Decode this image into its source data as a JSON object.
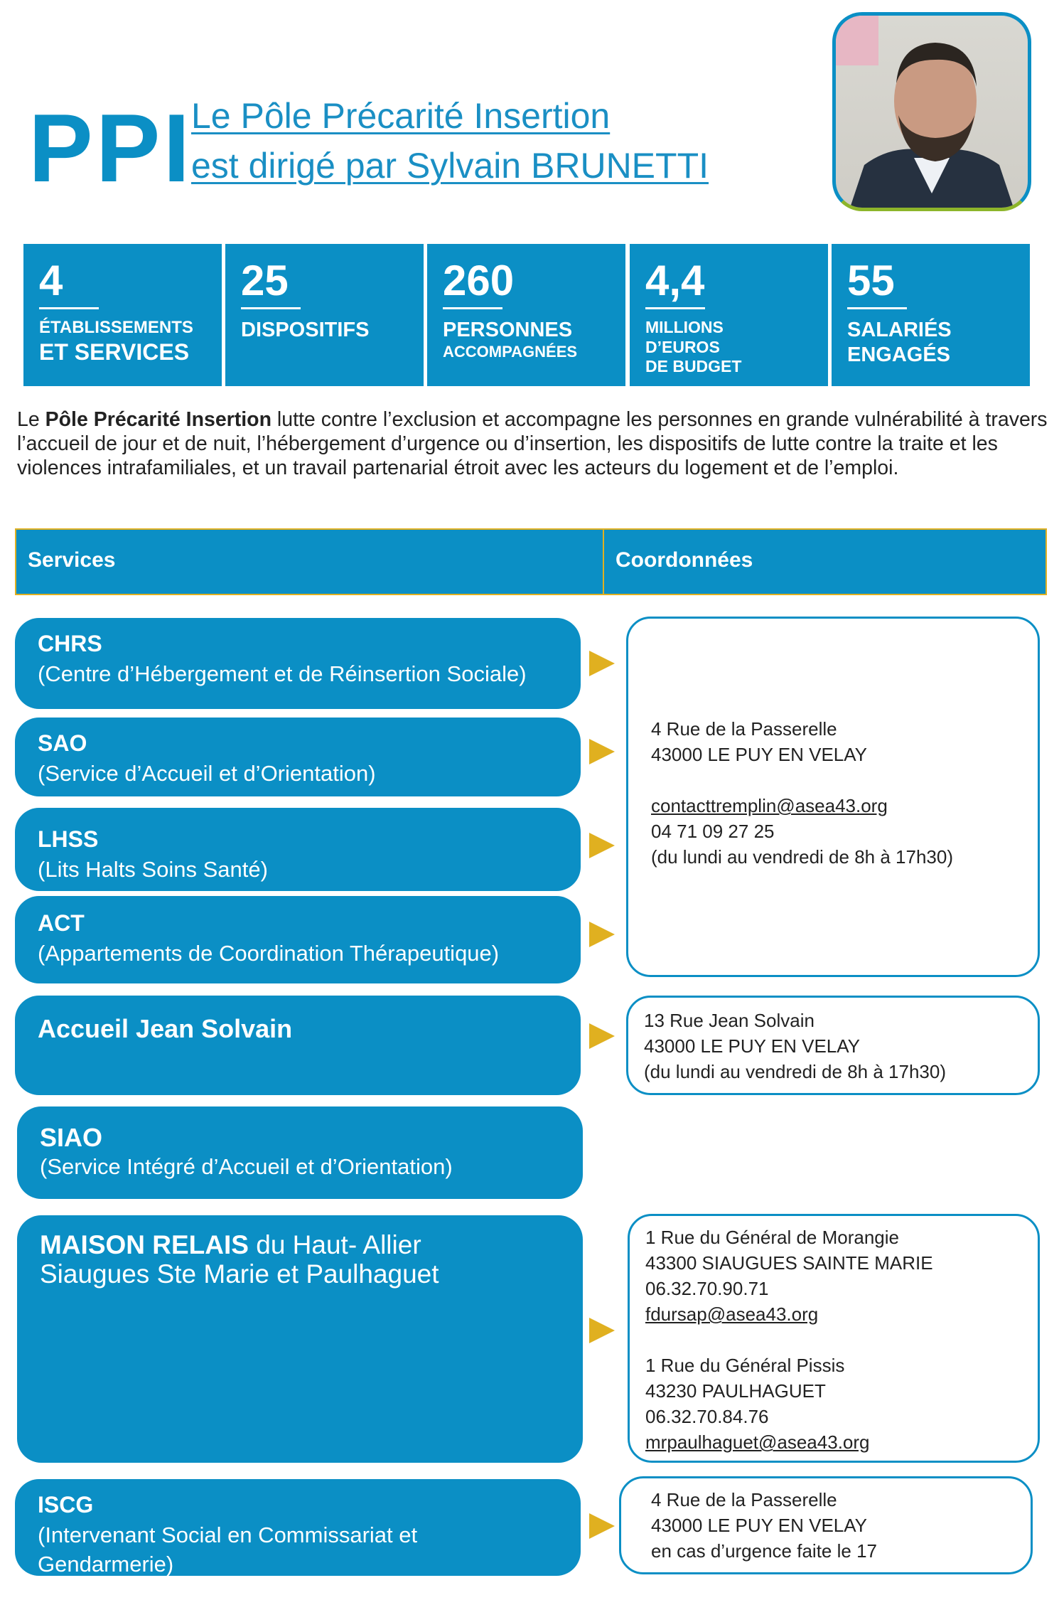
{
  "header": {
    "acronym": "PPI",
    "title_line1": "Le Pôle Précarité Insertion",
    "title_line2": "est dirigé par Sylvain BRUNETTI",
    "photo_alt": "Sylvain BRUNETTI"
  },
  "stats": [
    {
      "number": "4",
      "label1": "ÉTABLISSEMENTS",
      "label2": "ET SERVICES"
    },
    {
      "number": "25",
      "label1": "DISPOSITIFS",
      "label2": ""
    },
    {
      "number": "260",
      "label1": "PERSONNES",
      "label2": "ACCOMPAGNÉES"
    },
    {
      "number": "4,4",
      "label1": "MILLIONS",
      "label2": "D’EUROS",
      "label3": "DE BUDGET"
    },
    {
      "number": "55",
      "label1": "SALARIÉS",
      "label2": "ENGAGÉS"
    }
  ],
  "intro": {
    "prefix": "Le ",
    "bold": "Pôle Précarité Insertion",
    "text": " lutte contre l’exclusion et accompagne les personnes en grande vulnérabilité à travers l’accueil de jour et de nuit, l’hébergement d’urgence ou d’insertion, les dispositifs de lutte contre la traite et les violences intrafamiliales, et un travail partenarial étroit avec les acteurs du logement et de l’emploi."
  },
  "table": {
    "col1": "Services",
    "col2": "Coordonnées"
  },
  "services": [
    {
      "title": "CHRS",
      "subtitle": "(Centre d’Hébergement et de Réinsertion Sociale)"
    },
    {
      "title": "SAO",
      "subtitle": "(Service d’Accueil et d’Orientation)"
    },
    {
      "title": "LHSS",
      "subtitle": "(Lits Halts Soins Santé)"
    },
    {
      "title": "ACT",
      "subtitle": "(Appartements de Coordination Thérapeutique)"
    },
    {
      "title": "Accueil Jean Solvain",
      "subtitle": ""
    },
    {
      "title": "SIAO",
      "subtitle": "(Service Intégré d’Accueil et d’Orientation)"
    },
    {
      "title": "MAISON RELAIS",
      "title_rest": " du Haut- Allier",
      "subtitle": "Siaugues Ste Marie et Paulhaguet"
    },
    {
      "title": "ISCG",
      "subtitle": " (Intervenant Social en Commissariat et Gendarmerie)"
    }
  ],
  "contacts": {
    "main": {
      "street": "4 Rue de la Passerelle",
      "city": "43000 LE PUY EN VELAY",
      "email": "contacttremplin@asea43.org",
      "phone": "04 71 09 27 25",
      "hours": "(du lundi au vendredi de 8h à 17h30)"
    },
    "solvain": {
      "street": "13 Rue Jean Solvain",
      "city": "43000 LE PUY EN VELAY",
      "hours": "(du lundi au vendredi de 8h à 17h30)"
    },
    "maison": {
      "street1": "1 Rue du Général de Morangie",
      "city1": "43300 SIAUGUES SAINTE MARIE",
      "phone1": "06.32.70.90.71",
      "email1": "fdursap@asea43.org",
      "street2": "1 Rue du Général Pissis",
      "city2": "43230 PAULHAGUET",
      "phone2": "06.32.70.84.76",
      "email2": "mrpaulhaguet@asea43.org"
    },
    "iscg": {
      "street": "4 Rue de la Passerelle",
      "city": "43000 LE PUY EN VELAY",
      "note": "en cas d’urgence faite le 17"
    }
  },
  "colors": {
    "blue": "#0b8fc5",
    "yellow": "#e0b020"
  }
}
